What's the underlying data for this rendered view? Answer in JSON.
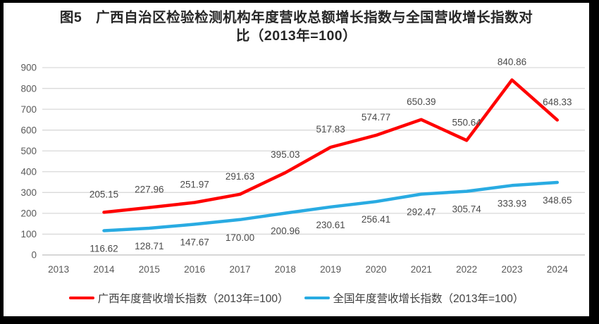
{
  "chart_data": {
    "type": "line",
    "title": "图5 广西自治区检验检测机构年度营收总额增长指数与全国营收增长指数对比（2013年=100）",
    "title_lines": [
      "图5　广西自治区检验检测机构年度营收总额增长指数与全国营收增长指数对",
      "比（2013年=100）"
    ],
    "categories": [
      "2013",
      "2014",
      "2015",
      "2016",
      "2017",
      "2018",
      "2019",
      "2020",
      "2021",
      "2022",
      "2023",
      "2024"
    ],
    "series": [
      {
        "name": "广西年度营收增长指数（2013年=100）",
        "color": "#FF0000",
        "label_position": "above",
        "values": [
          null,
          205.15,
          227.96,
          251.97,
          291.63,
          395.03,
          517.83,
          574.77,
          650.39,
          550.64,
          840.86,
          648.33
        ]
      },
      {
        "name": "全国年度营收增长指数（2013年=100）",
        "color": "#29ABE2",
        "label_position": "below",
        "values": [
          null,
          116.62,
          128.71,
          147.67,
          170.0,
          200.96,
          230.61,
          256.41,
          292.47,
          305.74,
          333.93,
          348.65
        ]
      }
    ],
    "y_axis": {
      "min": 0,
      "max": 900,
      "step": 100,
      "ticks": [
        0,
        100,
        200,
        300,
        400,
        500,
        600,
        700,
        800,
        900
      ]
    },
    "grid": true,
    "legend_position": "bottom",
    "value_decimals": 2
  },
  "frame": {
    "border_color": "#000000"
  },
  "style_colors": {
    "gridline": "#D9D9D9",
    "axis_line": "#BFBFBF",
    "tick_text": "#595959",
    "data_label_text": "#4A4A4A",
    "title_text": "#262626"
  }
}
